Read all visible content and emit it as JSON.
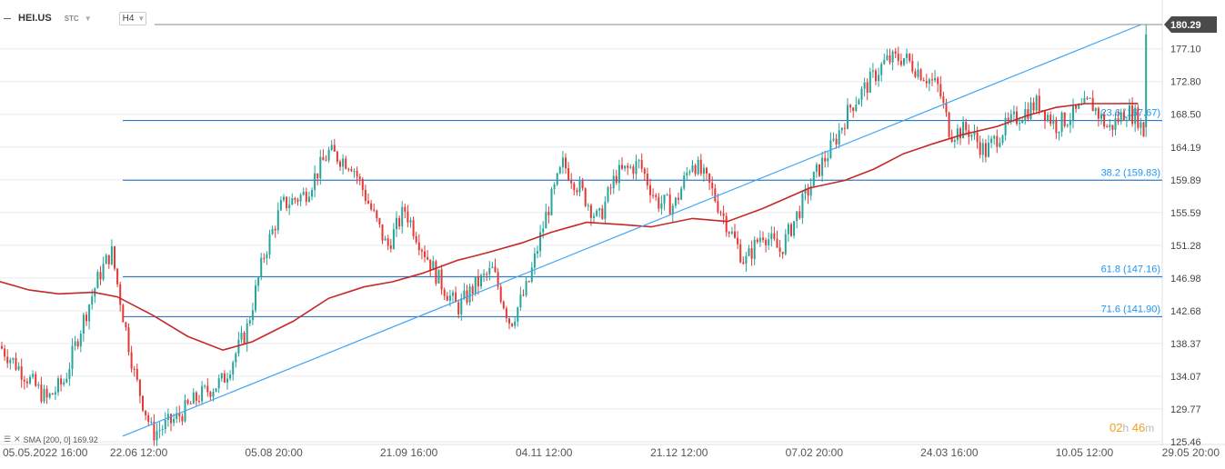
{
  "header": {
    "symbol": "HEI.US",
    "badge": "STC",
    "timeframe": "H4"
  },
  "indicator": {
    "label": "SMA",
    "params": "[200,  0]",
    "value": "169.92"
  },
  "timer": {
    "hours": "02",
    "hours_unit": "h",
    "minutes": "46",
    "minutes_unit": "m"
  },
  "colors": {
    "up": "#26a69a",
    "down": "#e53935",
    "sma": "#c62828",
    "fib": "#1565c0",
    "trend": "#42a5f5",
    "price_tag": "#4a4a4a",
    "grid": "#e6ebef"
  },
  "chart_data": {
    "type": "candlestick",
    "symbol": "HEI.US",
    "timeframe": "H4",
    "ylim": [
      125.46,
      180.29
    ],
    "y_ticks": [
      "180.29",
      "177.10",
      "172.80",
      "168.50",
      "164.19",
      "159.89",
      "155.59",
      "151.28",
      "146.98",
      "142.68",
      "138.37",
      "134.07",
      "129.77",
      "125.46"
    ],
    "x_ticks": [
      "05.05.2022  16:00",
      "22.06  12:00",
      "05.08  20:00",
      "21.09  16:00",
      "04.11  12:00",
      "21.12  12:00",
      "07.02  20:00",
      "24.03  16:00",
      "10.05  12:00",
      "29.05  20:00"
    ],
    "last_price": "180.29",
    "fib_levels": [
      {
        "label": "23.6 (167.67)",
        "value": 167.67
      },
      {
        "label": "38.2 (159.83)",
        "value": 159.83
      },
      {
        "label": "61.8 (147.16)",
        "value": 147.16
      },
      {
        "label": "71.6 (141.90)",
        "value": 141.9
      }
    ],
    "trendline": {
      "from": {
        "x": "22.06",
        "y": 126.2
      },
      "to": {
        "x": "10.05",
        "y": 180.29
      }
    },
    "sma": {
      "name": "SMA [200, 0]",
      "last": 169.92,
      "points": [
        {
          "x": 0.0,
          "y": 146.5
        },
        {
          "x": 0.025,
          "y": 145.4
        },
        {
          "x": 0.05,
          "y": 144.9
        },
        {
          "x": 0.08,
          "y": 145.1
        },
        {
          "x": 0.1,
          "y": 144.5
        },
        {
          "x": 0.13,
          "y": 142.1
        },
        {
          "x": 0.16,
          "y": 139.3
        },
        {
          "x": 0.19,
          "y": 137.5
        },
        {
          "x": 0.215,
          "y": 138.6
        },
        {
          "x": 0.25,
          "y": 141.3
        },
        {
          "x": 0.28,
          "y": 144.3
        },
        {
          "x": 0.31,
          "y": 145.8
        },
        {
          "x": 0.335,
          "y": 146.5
        },
        {
          "x": 0.36,
          "y": 147.6
        },
        {
          "x": 0.39,
          "y": 149.3
        },
        {
          "x": 0.415,
          "y": 150.3
        },
        {
          "x": 0.445,
          "y": 151.6
        },
        {
          "x": 0.47,
          "y": 153.0
        },
        {
          "x": 0.5,
          "y": 154.3
        },
        {
          "x": 0.53,
          "y": 154.0
        },
        {
          "x": 0.555,
          "y": 153.7
        },
        {
          "x": 0.59,
          "y": 154.8
        },
        {
          "x": 0.62,
          "y": 154.4
        },
        {
          "x": 0.65,
          "y": 156.1
        },
        {
          "x": 0.69,
          "y": 158.8
        },
        {
          "x": 0.72,
          "y": 159.8
        },
        {
          "x": 0.745,
          "y": 161.3
        },
        {
          "x": 0.77,
          "y": 163.3
        },
        {
          "x": 0.795,
          "y": 164.6
        },
        {
          "x": 0.82,
          "y": 165.8
        },
        {
          "x": 0.85,
          "y": 166.9
        },
        {
          "x": 0.875,
          "y": 168.3
        },
        {
          "x": 0.9,
          "y": 169.4
        },
        {
          "x": 0.925,
          "y": 169.9
        },
        {
          "x": 0.95,
          "y": 169.9
        },
        {
          "x": 0.97,
          "y": 169.92
        }
      ]
    },
    "price_path": [
      {
        "x": 0.0,
        "y": 138.0
      },
      {
        "x": 0.02,
        "y": 134.5
      },
      {
        "x": 0.04,
        "y": 131.0
      },
      {
        "x": 0.055,
        "y": 133.5
      },
      {
        "x": 0.07,
        "y": 141.0
      },
      {
        "x": 0.085,
        "y": 147.5
      },
      {
        "x": 0.095,
        "y": 150.5
      },
      {
        "x": 0.105,
        "y": 142.0
      },
      {
        "x": 0.115,
        "y": 134.0
      },
      {
        "x": 0.13,
        "y": 126.5
      },
      {
        "x": 0.15,
        "y": 128.5
      },
      {
        "x": 0.17,
        "y": 131.5
      },
      {
        "x": 0.19,
        "y": 133.5
      },
      {
        "x": 0.21,
        "y": 140.0
      },
      {
        "x": 0.225,
        "y": 150.0
      },
      {
        "x": 0.24,
        "y": 156.5
      },
      {
        "x": 0.26,
        "y": 158.0
      },
      {
        "x": 0.28,
        "y": 163.5
      },
      {
        "x": 0.3,
        "y": 162.0
      },
      {
        "x": 0.315,
        "y": 156.5
      },
      {
        "x": 0.33,
        "y": 151.0
      },
      {
        "x": 0.345,
        "y": 156.0
      },
      {
        "x": 0.36,
        "y": 151.0
      },
      {
        "x": 0.375,
        "y": 146.5
      },
      {
        "x": 0.39,
        "y": 143.0
      },
      {
        "x": 0.405,
        "y": 146.0
      },
      {
        "x": 0.42,
        "y": 148.0
      },
      {
        "x": 0.435,
        "y": 141.0
      },
      {
        "x": 0.45,
        "y": 146.0
      },
      {
        "x": 0.465,
        "y": 155.0
      },
      {
        "x": 0.48,
        "y": 162.0
      },
      {
        "x": 0.495,
        "y": 158.5
      },
      {
        "x": 0.51,
        "y": 154.5
      },
      {
        "x": 0.525,
        "y": 160.5
      },
      {
        "x": 0.545,
        "y": 162.0
      },
      {
        "x": 0.56,
        "y": 157.0
      },
      {
        "x": 0.575,
        "y": 156.5
      },
      {
        "x": 0.59,
        "y": 162.5
      },
      {
        "x": 0.605,
        "y": 159.0
      },
      {
        "x": 0.62,
        "y": 154.0
      },
      {
        "x": 0.635,
        "y": 149.0
      },
      {
        "x": 0.65,
        "y": 153.0
      },
      {
        "x": 0.665,
        "y": 150.5
      },
      {
        "x": 0.68,
        "y": 155.5
      },
      {
        "x": 0.695,
        "y": 160.5
      },
      {
        "x": 0.71,
        "y": 164.5
      },
      {
        "x": 0.725,
        "y": 169.5
      },
      {
        "x": 0.74,
        "y": 172.5
      },
      {
        "x": 0.755,
        "y": 175.5
      },
      {
        "x": 0.77,
        "y": 176.0
      },
      {
        "x": 0.785,
        "y": 174.0
      },
      {
        "x": 0.8,
        "y": 172.0
      },
      {
        "x": 0.81,
        "y": 166.0
      },
      {
        "x": 0.825,
        "y": 166.5
      },
      {
        "x": 0.84,
        "y": 163.5
      },
      {
        "x": 0.855,
        "y": 166.5
      },
      {
        "x": 0.87,
        "y": 168.5
      },
      {
        "x": 0.885,
        "y": 170.0
      },
      {
        "x": 0.9,
        "y": 167.0
      },
      {
        "x": 0.915,
        "y": 168.5
      },
      {
        "x": 0.93,
        "y": 170.0
      },
      {
        "x": 0.945,
        "y": 166.5
      },
      {
        "x": 0.96,
        "y": 169.0
      },
      {
        "x": 0.97,
        "y": 168.0
      },
      {
        "x": 0.975,
        "y": 166.0
      },
      {
        "x": 0.98,
        "y": 180.29
      }
    ]
  }
}
